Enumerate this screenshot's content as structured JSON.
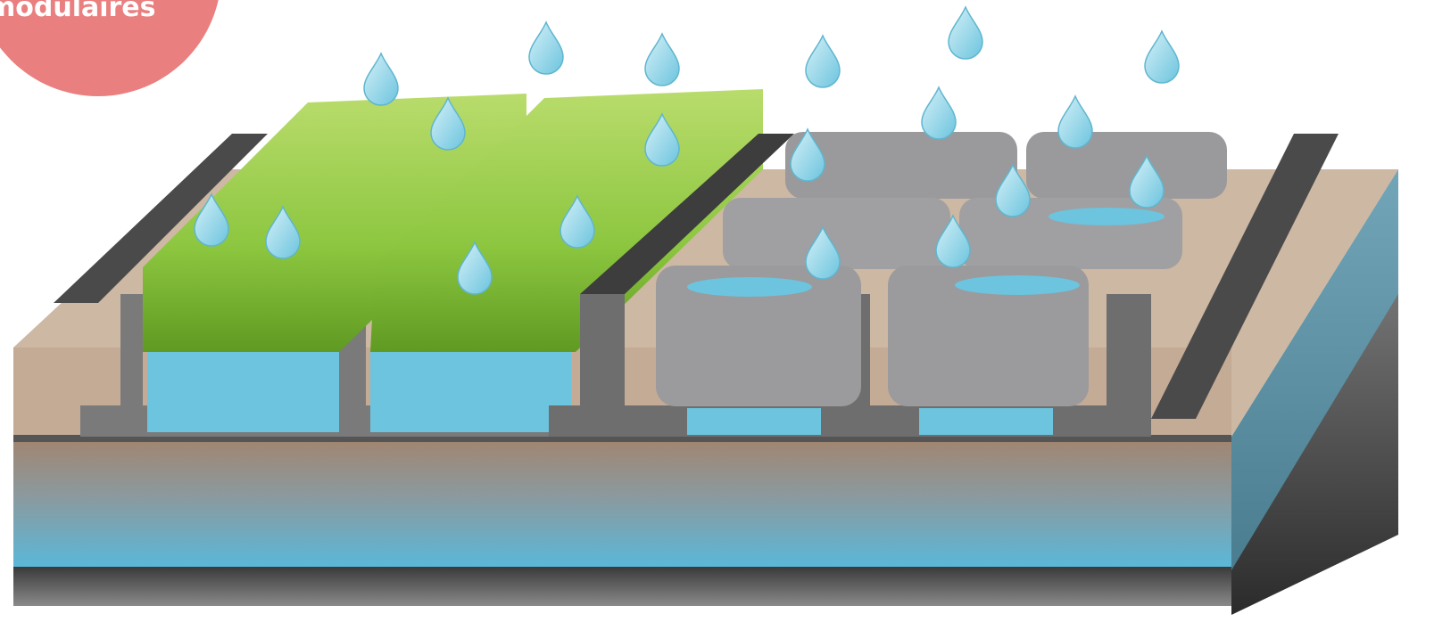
{
  "label": "modulaires"
}
